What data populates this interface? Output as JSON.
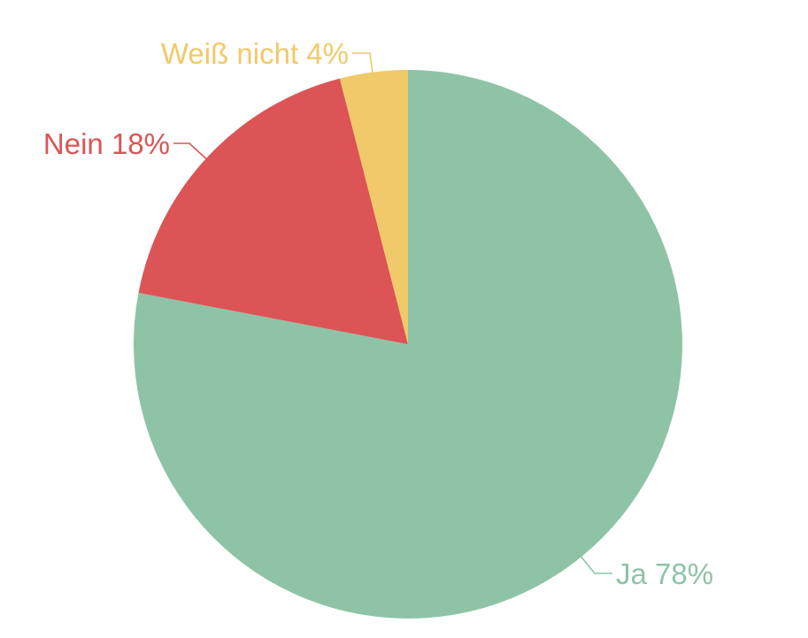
{
  "chart_data": {
    "type": "pie",
    "start": "top",
    "direction": "clockwise",
    "slices": [
      {
        "label": "Ja",
        "value": 78,
        "display": "Ja 78%",
        "color": "#8fc3a7"
      },
      {
        "label": "Nein",
        "value": 18,
        "display": "Nein 18%",
        "color": "#dc5455"
      },
      {
        "label": "Weiß nicht",
        "value": 4,
        "display": "Weiß nicht 4%",
        "color": "#f0c96a"
      }
    ]
  }
}
